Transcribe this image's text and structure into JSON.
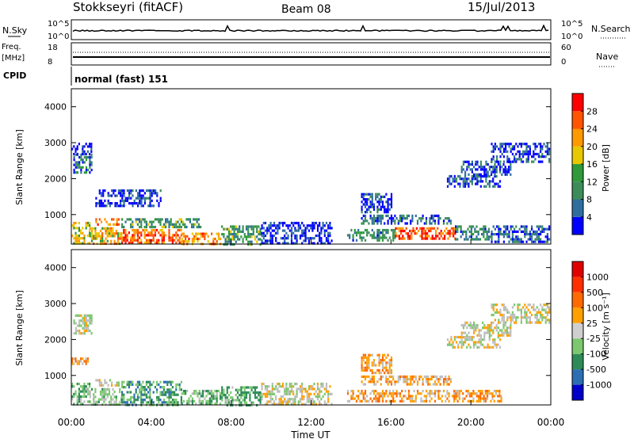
{
  "header": {
    "station": "Stokkseyri (fitACF)",
    "beam": "Beam 08",
    "date": "15/Jul/2013"
  },
  "panels": {
    "nsky_label": "N.Sky",
    "nsky_ticks": [
      "10^5",
      "10^0"
    ],
    "nsearch_label": "N.Search",
    "freq_label_1": "Freq.",
    "freq_label_2": "[MHz]",
    "freq_ticks": [
      "18",
      "8"
    ],
    "nave_label": "Nave",
    "nave_ticks": [
      "60",
      "0"
    ],
    "cpid_label": "CPID",
    "cpid_value": "normal (fast) 151"
  },
  "colors": {
    "power": [
      "#0000ff",
      "#2e6e9e",
      "#3c8c5a",
      "#2e9a3a",
      "#e8c800",
      "#ff9900",
      "#ff5500",
      "#ff0000"
    ],
    "velocity": [
      "#0000c8",
      "#2c6eb4",
      "#2e8b57",
      "#7bc86e",
      "#cfcfcf",
      "#ffa000",
      "#ff6a00",
      "#ff3000",
      "#e00000"
    ],
    "ground_scatter": "#bebebe"
  },
  "chart_data": [
    {
      "type": "heatmap",
      "name": "power",
      "xlabel": "",
      "ylabel": "Slant Range [km]",
      "xlim": [
        0,
        24
      ],
      "ylim": [
        180,
        4500
      ],
      "x_ticks": [
        "00:00",
        "04:00",
        "08:00",
        "12:00",
        "16:00",
        "20:00",
        "00:00"
      ],
      "y_ticks": [
        1000,
        2000,
        3000,
        4000
      ],
      "colorbar": {
        "label": "Power [dB]",
        "ticks": [
          "4",
          "8",
          "12",
          "16",
          "20",
          "24",
          "28"
        ],
        "range": [
          0,
          30
        ]
      },
      "regions": [
        {
          "t": [
            0.0,
            0.9
          ],
          "r": [
            200,
            800
          ],
          "level": 0.55
        },
        {
          "t": [
            0.1,
            1.0
          ],
          "r": [
            2200,
            2700
          ],
          "level": 0.25
        },
        {
          "t": [
            0.0,
            1.0
          ],
          "r": [
            2700,
            3000
          ],
          "level": 0.05
        },
        {
          "t": [
            0.9,
            2.5
          ],
          "r": [
            200,
            650
          ],
          "level": 0.6
        },
        {
          "t": [
            1.2,
            2.4
          ],
          "r": [
            700,
            900
          ],
          "level": 0.75
        },
        {
          "t": [
            2.5,
            5.5
          ],
          "r": [
            200,
            600
          ],
          "level": 0.8
        },
        {
          "t": [
            2.5,
            6.5
          ],
          "r": [
            650,
            900
          ],
          "level": 0.35
        },
        {
          "t": [
            5.5,
            7.5
          ],
          "r": [
            200,
            500
          ],
          "level": 0.7
        },
        {
          "t": [
            7.5,
            9.5
          ],
          "r": [
            200,
            700
          ],
          "level": 0.35
        },
        {
          "t": [
            1.2,
            4.5
          ],
          "r": [
            1250,
            1700
          ],
          "level": 0.1
        },
        {
          "t": [
            9.5,
            13.0
          ],
          "r": [
            200,
            800
          ],
          "level": 0.05
        },
        {
          "t": [
            13.8,
            16.2
          ],
          "r": [
            300,
            600
          ],
          "level": 0.3
        },
        {
          "t": [
            16.2,
            19.2
          ],
          "r": [
            300,
            650
          ],
          "level": 0.85
        },
        {
          "t": [
            19.2,
            21.0
          ],
          "r": [
            300,
            700
          ],
          "level": 0.3
        },
        {
          "t": [
            21.0,
            23.9
          ],
          "r": [
            250,
            700
          ],
          "level": 0.15
        },
        {
          "t": [
            14.5,
            19.0
          ],
          "r": [
            750,
            1000
          ],
          "level": 0.2
        },
        {
          "t": [
            14.5,
            16.0
          ],
          "r": [
            1100,
            1600
          ],
          "level": 0.12
        },
        {
          "t": [
            18.8,
            21.5
          ],
          "r": [
            1800,
            2100
          ],
          "level": 0.15
        },
        {
          "t": [
            19.5,
            22.0
          ],
          "r": [
            2100,
            2500
          ],
          "level": 0.12
        },
        {
          "t": [
            21.0,
            23.9
          ],
          "r": [
            2500,
            3000
          ],
          "level": 0.1
        }
      ]
    },
    {
      "type": "heatmap",
      "name": "velocity",
      "xlabel": "Time UT",
      "ylabel": "Slant Range [km]",
      "xlim": [
        0,
        24
      ],
      "ylim": [
        180,
        4500
      ],
      "x_ticks": [
        "00:00",
        "04:00",
        "08:00",
        "12:00",
        "16:00",
        "20:00",
        "00:00"
      ],
      "y_ticks": [
        1000,
        2000,
        3000,
        4000
      ],
      "colorbar": {
        "label": "Velocity [m s⁻¹]",
        "ticks": [
          "1000",
          "500",
          "100",
          "25",
          "-25",
          "-100",
          "-500",
          "-1000"
        ]
      },
      "regions": [
        {
          "t": [
            0.0,
            0.9
          ],
          "r": [
            200,
            800
          ],
          "v": 0.35
        },
        {
          "t": [
            0.1,
            1.0
          ],
          "r": [
            2200,
            2700
          ],
          "v": 0.48
        },
        {
          "t": [
            0.0,
            0.8
          ],
          "r": [
            1300,
            1500
          ],
          "v": 0.65
        },
        {
          "t": [
            0.9,
            2.5
          ],
          "r": [
            200,
            650
          ],
          "v": 0.42
        },
        {
          "t": [
            1.2,
            2.4
          ],
          "r": [
            700,
            900
          ],
          "v": 0.5
        },
        {
          "t": [
            2.5,
            5.5
          ],
          "r": [
            200,
            850
          ],
          "v": 0.3
        },
        {
          "t": [
            5.5,
            7.5
          ],
          "r": [
            200,
            600
          ],
          "v": 0.38
        },
        {
          "t": [
            7.5,
            9.5
          ],
          "r": [
            200,
            700
          ],
          "v": 0.35
        },
        {
          "t": [
            9.5,
            13.0
          ],
          "r": [
            200,
            800
          ],
          "v": 0.5
        },
        {
          "t": [
            13.8,
            21.5
          ],
          "r": [
            300,
            600
          ],
          "v": 0.62
        },
        {
          "t": [
            14.5,
            19.0
          ],
          "r": [
            750,
            1000
          ],
          "v": 0.6
        },
        {
          "t": [
            14.5,
            16.0
          ],
          "r": [
            1100,
            1600
          ],
          "v": 0.63
        },
        {
          "t": [
            18.8,
            21.5
          ],
          "r": [
            1800,
            2100
          ],
          "v": 0.5
        },
        {
          "t": [
            19.5,
            22.0
          ],
          "r": [
            2100,
            2500
          ],
          "v": 0.5
        },
        {
          "t": [
            21.0,
            23.9
          ],
          "r": [
            2500,
            3000
          ],
          "v": 0.5
        }
      ]
    }
  ]
}
